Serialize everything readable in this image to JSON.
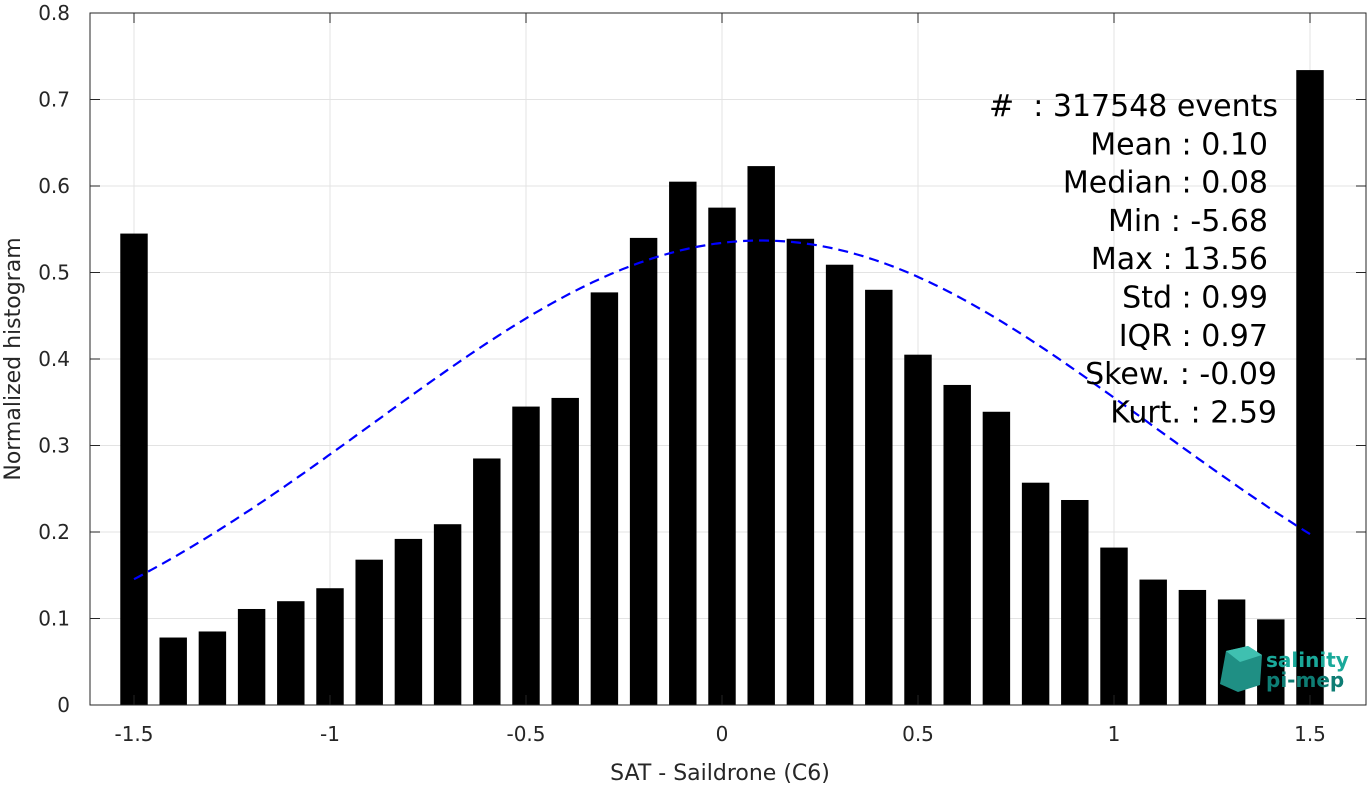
{
  "chart_data": {
    "type": "bar",
    "xlabel": "SAT - Saildrone (C6)",
    "ylabel": "Normalized histogram",
    "xlim": [
      -1.55,
      1.58
    ],
    "ylim": [
      0,
      0.8
    ],
    "xticks": [
      -1.5,
      -1,
      -0.5,
      0,
      0.5,
      1,
      1.5
    ],
    "xtick_labels": [
      "-1.5",
      "-1",
      "-0.5",
      "0",
      "0.5",
      "1",
      "1.5"
    ],
    "yticks": [
      0,
      0.1,
      0.2,
      0.3,
      0.4,
      0.5,
      0.6,
      0.7,
      0.8
    ],
    "ytick_labels": [
      "0",
      "0.1",
      "0.2",
      "0.3",
      "0.4",
      "0.5",
      "0.6",
      "0.7",
      "0.8"
    ],
    "grid": true,
    "bar_color": "#000000",
    "x": [
      -1.5,
      -1.4,
      -1.3,
      -1.2,
      -1.1,
      -1.0,
      -0.9,
      -0.8,
      -0.7,
      -0.6,
      -0.5,
      -0.4,
      -0.3,
      -0.2,
      -0.1,
      0.0,
      0.1,
      0.2,
      0.3,
      0.4,
      0.5,
      0.6,
      0.7,
      0.8,
      0.9,
      1.0,
      1.1,
      1.2,
      1.3,
      1.4,
      1.5
    ],
    "values": [
      0.545,
      0.078,
      0.085,
      0.111,
      0.12,
      0.135,
      0.168,
      0.192,
      0.209,
      0.285,
      0.345,
      0.355,
      0.477,
      0.54,
      0.605,
      0.575,
      0.623,
      0.539,
      0.509,
      0.48,
      0.405,
      0.37,
      0.339,
      0.257,
      0.237,
      0.182,
      0.145,
      0.133,
      0.122,
      0.099,
      0.734
    ],
    "fit_curve": {
      "style": "dashed",
      "color": "#0000ff",
      "mean": 0.1,
      "std": 0.99,
      "peak": 0.537,
      "x_range": [
        -1.5,
        1.5
      ]
    },
    "stats": [
      "#  : 317548 events",
      "Mean : 0.10",
      "Median : 0.08",
      "Min : -5.68",
      "Max : 13.56",
      "Std : 0.99",
      "IQR : 0.97",
      "Skew. : -0.09",
      "Kurt. : 2.59"
    ]
  },
  "logo": {
    "line1": "salinity",
    "line2": "pi-mep"
  }
}
